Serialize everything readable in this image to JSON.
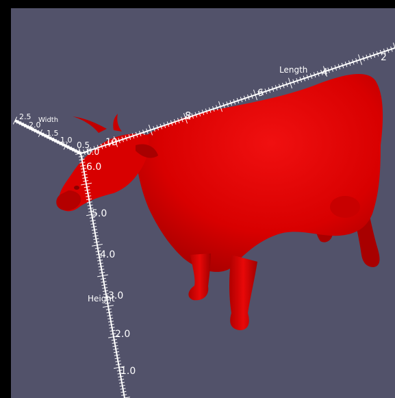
{
  "scene": {
    "background_color": "#52526a",
    "frame_color": "#000000",
    "model": {
      "name": "cow",
      "color": "#e00000"
    },
    "axis_color": "#ffffff",
    "axes": {
      "length": {
        "title": "Length",
        "ticks": [
          "2",
          "4",
          "6",
          "8",
          "10"
        ]
      },
      "width": {
        "title": "Width",
        "ticks": [
          "2.5",
          "2.0",
          "1.5",
          "1.0",
          "0.5",
          "0.0"
        ]
      },
      "height": {
        "title": "Height",
        "ticks": [
          "6.0",
          "5.0",
          "4.0",
          "3.0",
          "2.0",
          "1.0"
        ]
      }
    }
  }
}
